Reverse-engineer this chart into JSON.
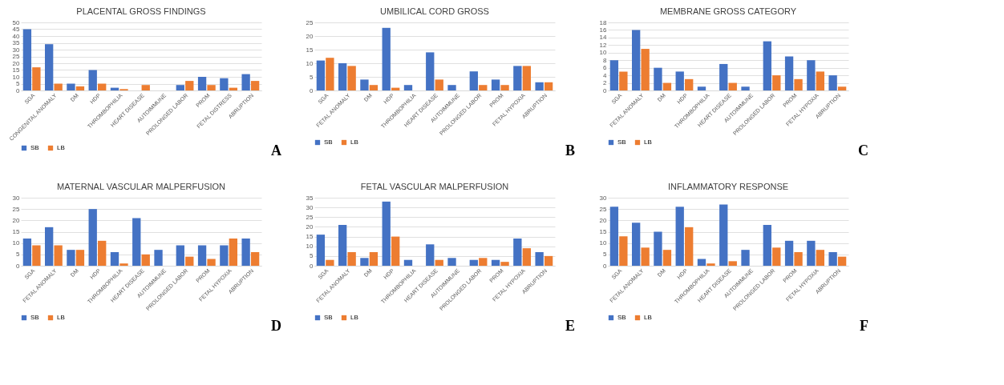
{
  "chart_data": [
    {
      "type": "bar",
      "title": "PLACENTAL GROSS FINDINGS",
      "categories": [
        "SGA",
        "CONGENITAL ANOMALY",
        "DM",
        "HDP",
        "THROMBOPHILIA",
        "HEART DISEASE",
        "AUTOIMMUNE",
        "PROLONGED LABOR",
        "PROM",
        "FETAL DISTRESS",
        "ABRUPTION"
      ],
      "series": [
        {
          "name": "SB",
          "color": "#4472c4",
          "values": [
            45,
            34,
            5,
            15,
            2,
            0,
            0,
            4,
            10,
            9,
            12
          ]
        },
        {
          "name": "LB",
          "color": "#ed7d31",
          "values": [
            17,
            5,
            3,
            5,
            1,
            4,
            0,
            7,
            4,
            2,
            7
          ]
        }
      ],
      "ylim": [
        0,
        50
      ],
      "yticks": [
        0,
        5,
        10,
        15,
        20,
        25,
        30,
        35,
        40,
        45,
        50
      ],
      "grid": "y",
      "legend": "bottom",
      "annotations": [
        "A"
      ]
    },
    {
      "type": "bar",
      "title": "UMBILICAL CORD GROSS",
      "categories": [
        "SGA",
        "FETAL ANOMALY",
        "DM",
        "HDP",
        "THROMBOPHILIA",
        "HEART DISEASE",
        "AUTOIMMUNE",
        "PROLONGED LABOR",
        "PROM",
        "FETAL HYPOXIA",
        "ABRUPTION"
      ],
      "series": [
        {
          "name": "SB",
          "color": "#4472c4",
          "values": [
            11,
            10,
            4,
            23,
            2,
            14,
            2,
            7,
            4,
            9,
            3
          ]
        },
        {
          "name": "LB",
          "color": "#ed7d31",
          "values": [
            12,
            9,
            2,
            1,
            0,
            4,
            0,
            2,
            2,
            9,
            3
          ]
        }
      ],
      "ylim": [
        0,
        25
      ],
      "yticks": [
        0,
        5,
        10,
        15,
        20,
        25
      ],
      "grid": "y",
      "legend": "bottom",
      "annotations": [
        "B"
      ]
    },
    {
      "type": "bar",
      "title": "MEMBRANE GROSS CATEGORY",
      "categories": [
        "SGA",
        "FETAL ANOMALY",
        "DM",
        "HDP",
        "THROMBOPHILIA",
        "HEART DISEASE",
        "AUTOIMMUNE",
        "PROLONGED LABOR",
        "PROM",
        "FETAL HYPOXIA",
        "ABRUPTION"
      ],
      "series": [
        {
          "name": "SB",
          "color": "#4472c4",
          "values": [
            8,
            16,
            6,
            5,
            1,
            7,
            1,
            13,
            9,
            8,
            4
          ]
        },
        {
          "name": "LB",
          "color": "#ed7d31",
          "values": [
            5,
            11,
            2,
            3,
            0,
            2,
            0,
            4,
            3,
            5,
            1
          ]
        }
      ],
      "ylim": [
        0,
        18
      ],
      "yticks": [
        0,
        2,
        4,
        6,
        8,
        10,
        12,
        14,
        16,
        18
      ],
      "grid": "y",
      "legend": "bottom",
      "annotations": [
        "C"
      ]
    },
    {
      "type": "bar",
      "title": "MATERNAL VASCULAR MALPERFUSION",
      "categories": [
        "SGA",
        "FETAL ANOMALY",
        "DM",
        "HDP",
        "THROMBOPHILIA",
        "HEART DISEASE",
        "AUTOIMMUNE",
        "PROLONGED LABOR",
        "PROM",
        "FETAL HYPOXIA",
        "ABRUPTION"
      ],
      "series": [
        {
          "name": "SB",
          "color": "#4472c4",
          "values": [
            12,
            17,
            7,
            25,
            6,
            21,
            7,
            9,
            9,
            9,
            12
          ]
        },
        {
          "name": "LB",
          "color": "#ed7d31",
          "values": [
            9,
            9,
            7,
            11,
            1,
            5,
            0,
            4,
            3,
            12,
            6
          ]
        }
      ],
      "ylim": [
        0,
        30
      ],
      "yticks": [
        0,
        5,
        10,
        15,
        20,
        25,
        30
      ],
      "grid": "y",
      "legend": "bottom",
      "annotations": [
        "D"
      ]
    },
    {
      "type": "bar",
      "title": "FETAL VASCULAR MALPERFUSION",
      "categories": [
        "SGA",
        "FETAL ANOMALY",
        "DM",
        "HDP",
        "THROMBOPHILIA",
        "HEART DISEASE",
        "AUTOIMMUNE",
        "PROLONGED LABOR",
        "PROM",
        "FETAL HYPOXIA",
        "ABRUPTION"
      ],
      "series": [
        {
          "name": "SB",
          "color": "#4472c4",
          "values": [
            16,
            21,
            4,
            33,
            3,
            11,
            4,
            3,
            3,
            14,
            7
          ]
        },
        {
          "name": "LB",
          "color": "#ed7d31",
          "values": [
            3,
            7,
            7,
            15,
            0,
            3,
            0,
            4,
            2,
            9,
            5
          ]
        }
      ],
      "ylim": [
        0,
        35
      ],
      "yticks": [
        0,
        5,
        10,
        15,
        20,
        25,
        30,
        35
      ],
      "grid": "y",
      "legend": "bottom",
      "annotations": [
        "E"
      ]
    },
    {
      "type": "bar",
      "title": "INFLAMMATORY RESPONSE",
      "categories": [
        "SGA",
        "FETAL ANOMALY",
        "DM",
        "HDP",
        "THROMBOPHILIA",
        "HEART DISEASE",
        "AUTOIMMUNE",
        "PROLONGED LABOR",
        "PROM",
        "FETAL HYPOXIA",
        "ABRUPTION"
      ],
      "series": [
        {
          "name": "SB",
          "color": "#4472c4",
          "values": [
            26,
            19,
            15,
            26,
            3,
            27,
            7,
            18,
            11,
            11,
            6
          ]
        },
        {
          "name": "LB",
          "color": "#ed7d31",
          "values": [
            13,
            8,
            7,
            17,
            1,
            2,
            0,
            8,
            6,
            7,
            4
          ]
        }
      ],
      "ylim": [
        0,
        30
      ],
      "yticks": [
        0,
        5,
        10,
        15,
        20,
        25,
        30
      ],
      "grid": "y",
      "legend": "bottom",
      "annotations": [
        "F"
      ]
    }
  ]
}
